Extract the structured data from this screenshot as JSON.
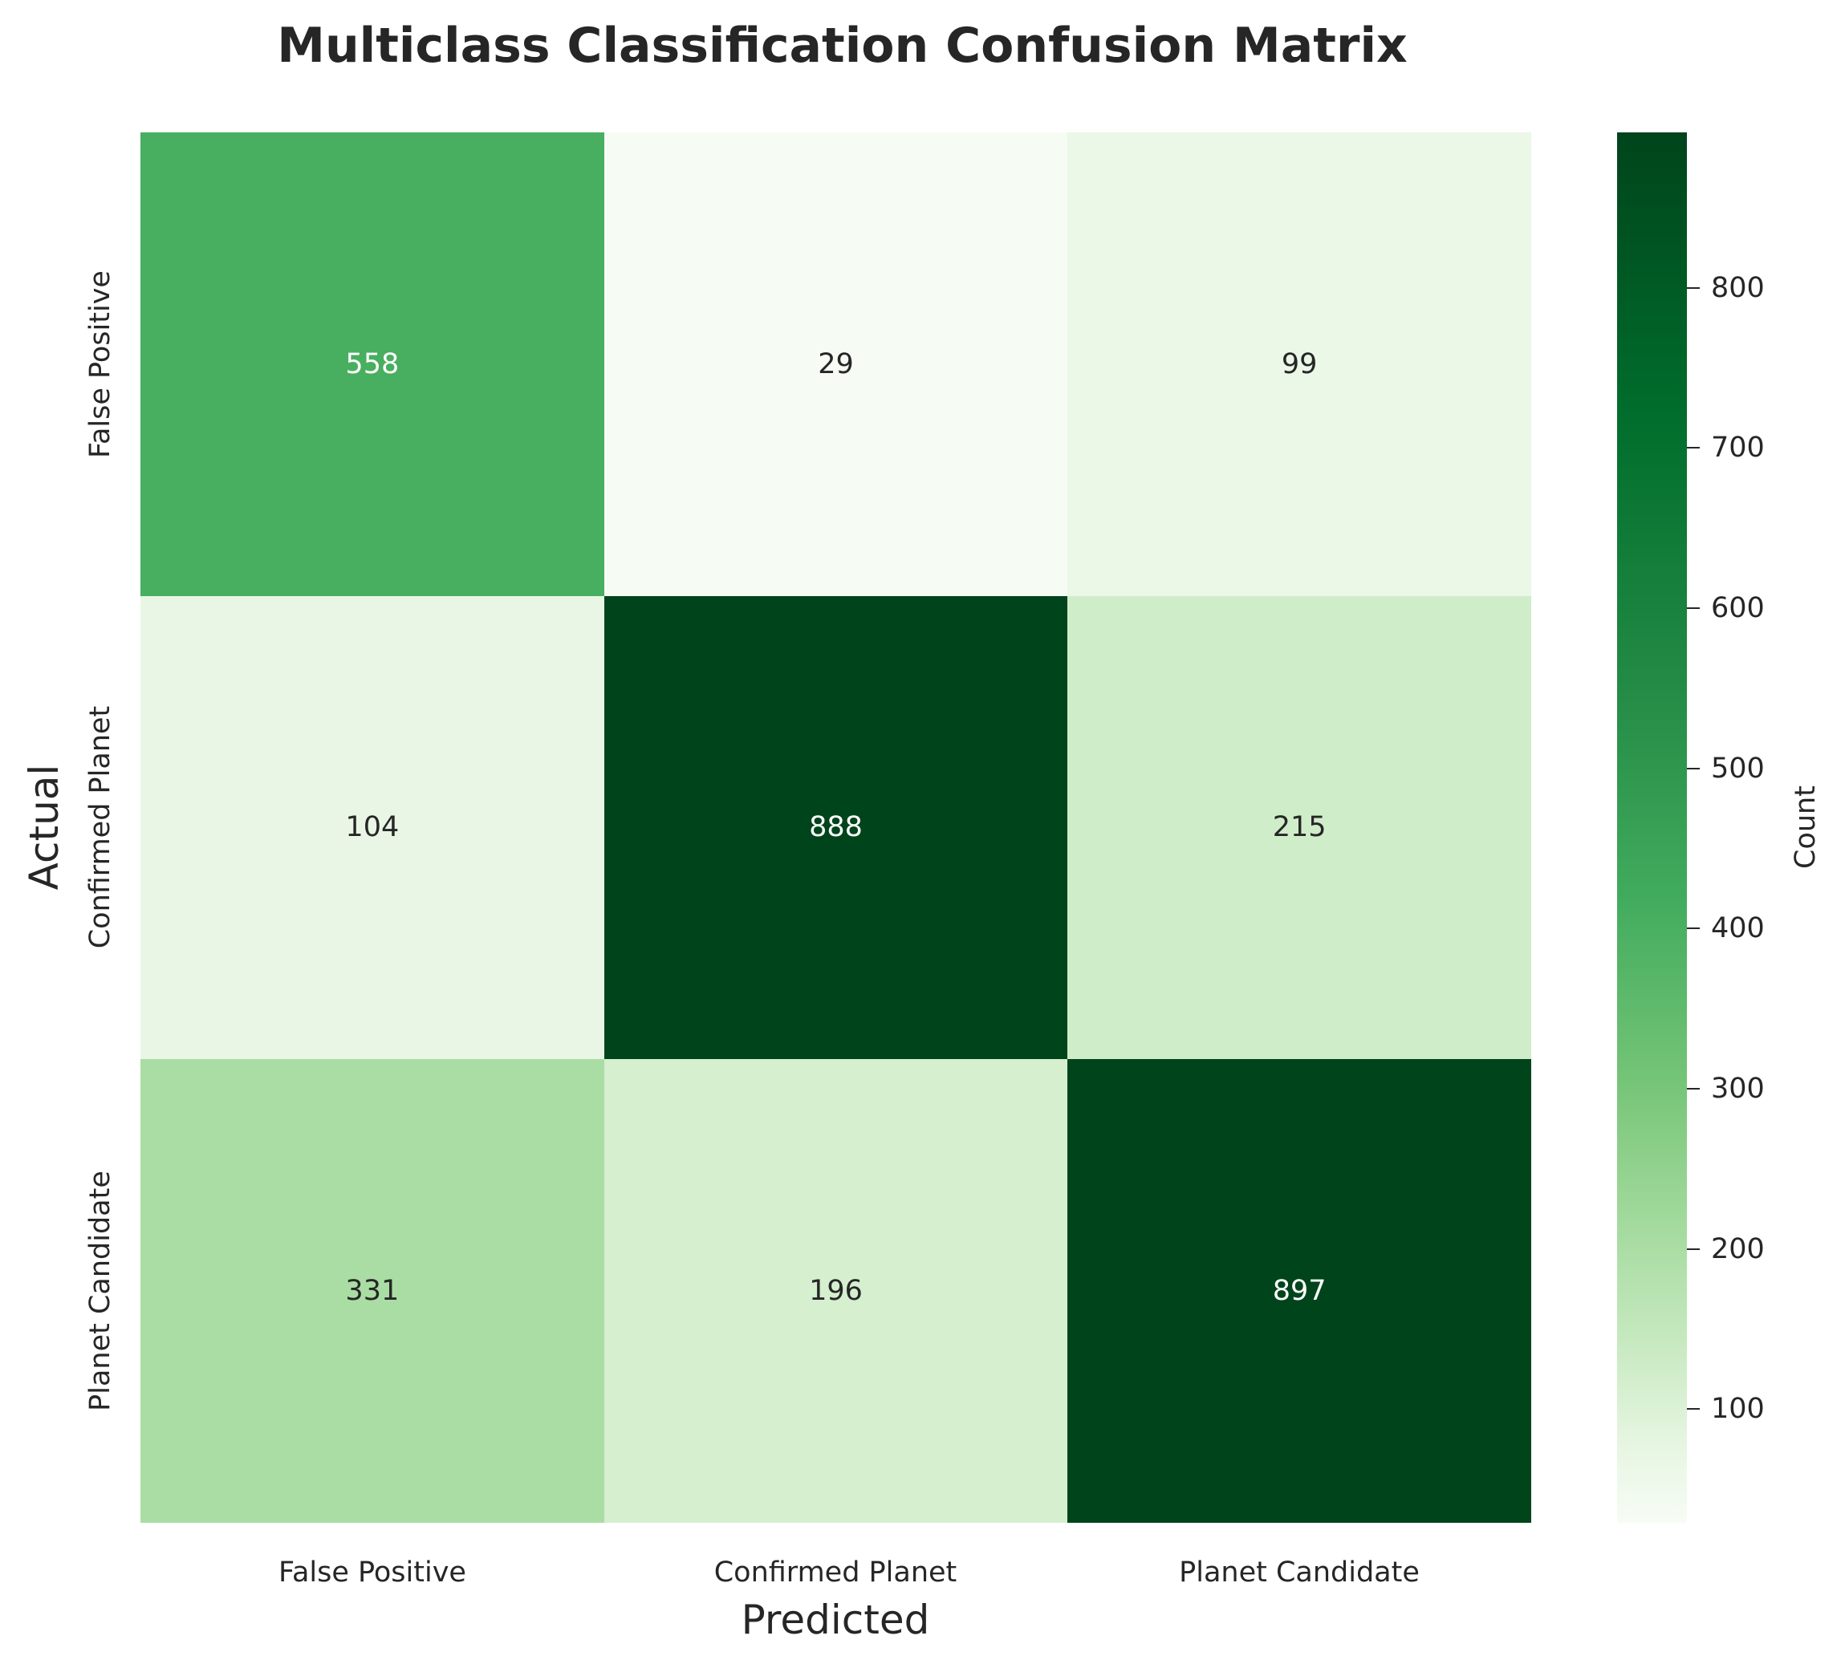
{
  "chart_data": {
    "type": "heatmap",
    "title": "Multiclass Classification Confusion Matrix",
    "xlabel": "Predicted",
    "ylabel": "Actual",
    "x_categories": [
      "False Positive",
      "Confirmed Planet",
      "Planet Candidate"
    ],
    "y_categories": [
      "False Positive",
      "Confirmed Planet",
      "Planet Candidate"
    ],
    "values": [
      [
        558,
        29,
        99
      ],
      [
        104,
        888,
        215
      ],
      [
        331,
        196,
        897
      ]
    ],
    "colormap": "Greens",
    "colorbar": {
      "label": "Count",
      "range": [
        29,
        897
      ],
      "ticks": [
        100,
        200,
        300,
        400,
        500,
        600,
        700,
        800
      ]
    }
  },
  "cell_colors": [
    [
      "#48ae60",
      "#f6fbf4",
      "#ebf7e7"
    ],
    [
      "#e9f6e5",
      "#00441b",
      "#d0edca"
    ],
    [
      "#aadda4",
      "#d5efcf",
      "#00441b"
    ]
  ],
  "cell_text_colors": [
    [
      "#ffffff",
      "#262626",
      "#262626"
    ],
    [
      "#262626",
      "#ffffff",
      "#262626"
    ],
    [
      "#262626",
      "#262626",
      "#ffffff"
    ]
  ]
}
